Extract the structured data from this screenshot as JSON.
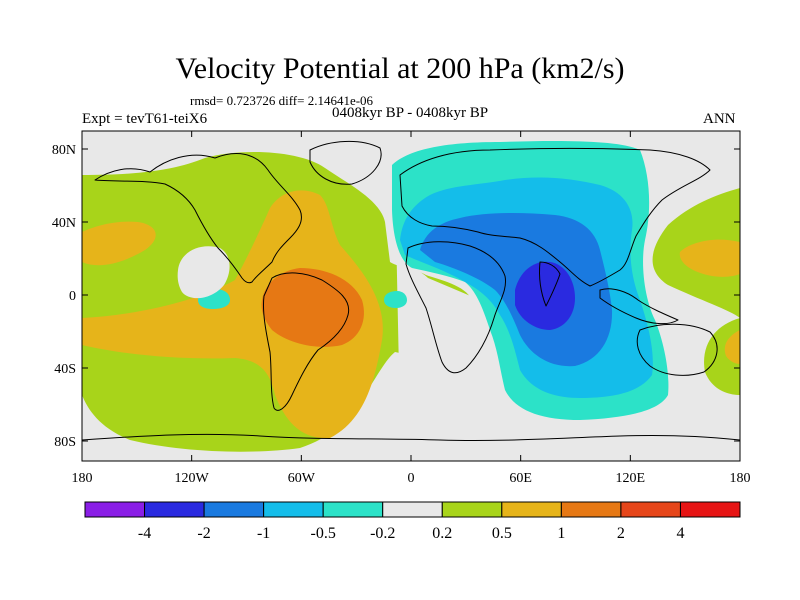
{
  "title": "Velocity Potential at 200 hPa (km2/s)",
  "stats": "rmsd= 0.723726 diff= 2.14641e-06",
  "left_label": "Expt = tevT61-teiX6",
  "center_label": "0408kyr BP - 0408kyr BP",
  "right_label": "ANN",
  "axes": {
    "x_ticks": [
      "180",
      "120W",
      "60W",
      "0",
      "60E",
      "120E",
      "180"
    ],
    "y_ticks": [
      "80N",
      "40N",
      "0",
      "40S",
      "80S"
    ]
  },
  "colorbar": {
    "labels": [
      "-4",
      "-2",
      "-1",
      "-0.5",
      "-0.2",
      "0.2",
      "0.5",
      "1",
      "2",
      "4"
    ],
    "colors": [
      "#8a1ee6",
      "#2a2ae0",
      "#1a7ae0",
      "#14bdea",
      "#2ce2c8",
      "#e8e8e8",
      "#a8d41a",
      "#e6b41a",
      "#e67814",
      "#e6461a",
      "#e61414"
    ]
  },
  "palette": {
    "background": "#e8e8e8",
    "lime": "#a8d41a",
    "orange": "#e6b41a",
    "darkorange": "#e67814",
    "teal": "#2ce2c8",
    "cyan": "#14bdea",
    "blue": "#1a7ae0",
    "darkblue": "#2a2ae0"
  }
}
